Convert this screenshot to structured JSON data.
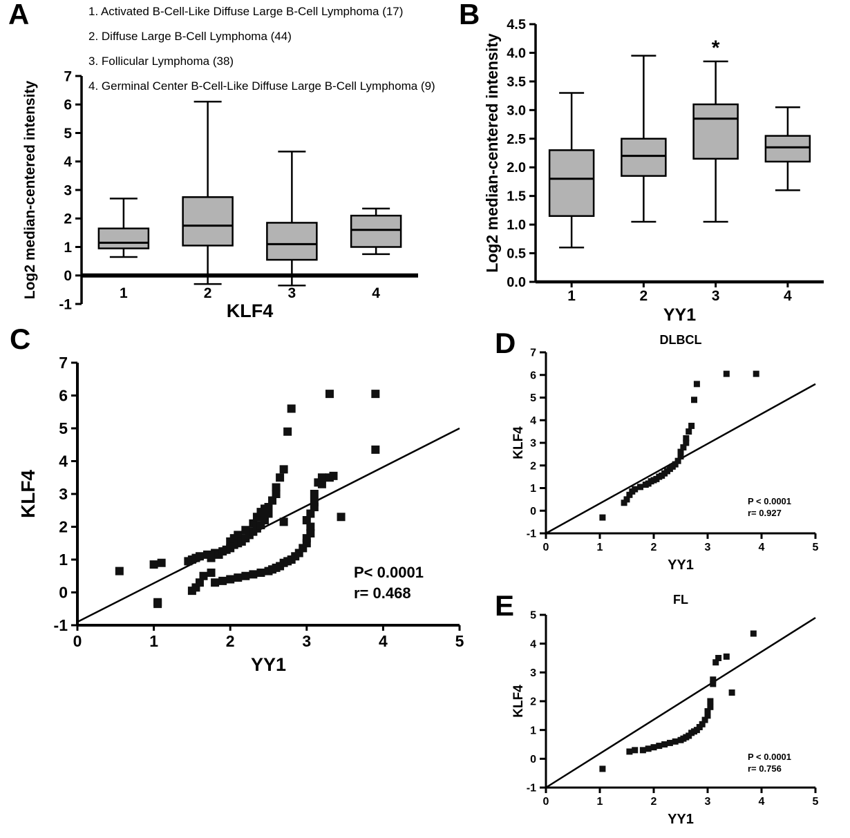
{
  "panels": {
    "a_label": "A",
    "b_label": "B",
    "c_label": "C",
    "d_label": "D",
    "e_label": "E"
  },
  "legend": {
    "items": [
      "1. Activated B-Cell-Like Diffuse Large B-Cell Lymphoma (17)",
      "2. Diffuse Large B-Cell Lymphoma (44)",
      "3. Follicular Lymphoma  (38)",
      "4. Germinal Center B-Cell-Like Diffuse Large B-Cell Lymphoma (9)"
    ]
  },
  "chart_data": [
    {
      "id": "a",
      "type": "box",
      "title": "",
      "xlabel": "KLF4",
      "ylabel": "Log2 median-centered intensity",
      "categories": [
        "1",
        "2",
        "3",
        "4"
      ],
      "ylim": [
        -1,
        7
      ],
      "ytick_vals": [
        -1,
        0,
        1,
        2,
        3,
        4,
        5,
        6,
        7
      ],
      "ytick_labels": [
        "-1",
        "0",
        "1",
        "2",
        "3",
        "4",
        "5",
        "6",
        "7"
      ],
      "xaxis_at": 0,
      "box_fill": "#b3b3b3",
      "boxes": [
        {
          "low": 0.65,
          "q1": 0.95,
          "median": 1.15,
          "q3": 1.65,
          "high": 2.7,
          "mark": ""
        },
        {
          "low": -0.3,
          "q1": 1.05,
          "median": 1.75,
          "q3": 2.75,
          "high": 6.1,
          "mark": ""
        },
        {
          "low": -0.35,
          "q1": 0.55,
          "median": 1.1,
          "q3": 1.85,
          "high": 4.35,
          "mark": ""
        },
        {
          "low": 0.75,
          "q1": 1.0,
          "median": 1.6,
          "q3": 2.1,
          "high": 2.35,
          "mark": ""
        }
      ]
    },
    {
      "id": "b",
      "type": "box",
      "title": "",
      "xlabel": "YY1",
      "ylabel": "Log2 median-centered intensity",
      "categories": [
        "1",
        "2",
        "3",
        "4"
      ],
      "ylim": [
        0,
        4.5
      ],
      "ytick_vals": [
        0,
        0.5,
        1,
        1.5,
        2,
        2.5,
        3,
        3.5,
        4,
        4.5
      ],
      "ytick_labels": [
        "0.0",
        "0.5",
        "1.0",
        "1.5",
        "2.0",
        "2.5",
        "3.0",
        "3.5",
        "4.0",
        "4.5"
      ],
      "xaxis_at": 0,
      "box_fill": "#b3b3b3",
      "boxes": [
        {
          "low": 0.6,
          "q1": 1.15,
          "median": 1.8,
          "q3": 2.3,
          "high": 3.3,
          "mark": ""
        },
        {
          "low": 1.05,
          "q1": 1.85,
          "median": 2.2,
          "q3": 2.5,
          "high": 3.95,
          "mark": ""
        },
        {
          "low": 1.05,
          "q1": 2.15,
          "median": 2.85,
          "q3": 3.1,
          "high": 3.85,
          "mark": "*"
        },
        {
          "low": 1.6,
          "q1": 2.1,
          "median": 2.35,
          "q3": 2.55,
          "high": 3.05,
          "mark": ""
        }
      ]
    },
    {
      "id": "c",
      "type": "scatter",
      "title": "",
      "xlabel": "YY1",
      "ylabel": "KLF4",
      "xlim": [
        0,
        5
      ],
      "ylim": [
        -1,
        7
      ],
      "xtick_vals": [
        0,
        1,
        2,
        3,
        4,
        5
      ],
      "xtick_labels": [
        "0",
        "1",
        "2",
        "3",
        "4",
        "5"
      ],
      "ytick_vals": [
        -1,
        0,
        1,
        2,
        3,
        4,
        5,
        6,
        7
      ],
      "ytick_labels": [
        "-1",
        "0",
        "1",
        "2",
        "3",
        "4",
        "5",
        "6",
        "7"
      ],
      "line": {
        "x1": 0,
        "y1": -0.9,
        "x2": 5,
        "y2": 5.0
      },
      "stats": [
        "P< 0.0001",
        "r= 0.468"
      ],
      "points": [
        [
          0.55,
          0.65
        ],
        [
          1.0,
          0.85
        ],
        [
          1.1,
          0.9
        ],
        [
          1.05,
          -0.3
        ],
        [
          1.05,
          -0.35
        ],
        [
          1.45,
          0.95
        ],
        [
          1.5,
          1.0
        ],
        [
          1.5,
          0.05
        ],
        [
          1.55,
          0.15
        ],
        [
          1.55,
          1.05
        ],
        [
          1.6,
          0.3
        ],
        [
          1.6,
          1.1
        ],
        [
          1.65,
          0.5
        ],
        [
          1.7,
          1.15
        ],
        [
          1.75,
          0.6
        ],
        [
          1.75,
          1.05
        ],
        [
          1.8,
          0.3
        ],
        [
          1.8,
          1.2
        ],
        [
          1.85,
          1.15
        ],
        [
          1.9,
          0.35
        ],
        [
          1.9,
          1.25
        ],
        [
          1.95,
          1.3
        ],
        [
          2.0,
          0.4
        ],
        [
          2.0,
          1.35
        ],
        [
          2.0,
          1.55
        ],
        [
          2.05,
          1.45
        ],
        [
          2.05,
          1.65
        ],
        [
          2.1,
          0.45
        ],
        [
          2.1,
          1.5
        ],
        [
          2.1,
          1.75
        ],
        [
          2.15,
          1.55
        ],
        [
          2.2,
          0.5
        ],
        [
          2.2,
          1.65
        ],
        [
          2.2,
          1.9
        ],
        [
          2.25,
          1.75
        ],
        [
          2.3,
          0.55
        ],
        [
          2.3,
          1.85
        ],
        [
          2.3,
          2.1
        ],
        [
          2.35,
          1.95
        ],
        [
          2.35,
          2.3
        ],
        [
          2.4,
          0.6
        ],
        [
          2.4,
          2.05
        ],
        [
          2.4,
          2.45
        ],
        [
          2.45,
          2.2
        ],
        [
          2.45,
          2.55
        ],
        [
          2.5,
          0.65
        ],
        [
          2.5,
          2.4
        ],
        [
          2.5,
          2.6
        ],
        [
          2.55,
          0.7
        ],
        [
          2.55,
          2.8
        ],
        [
          2.6,
          0.75
        ],
        [
          2.6,
          3.0
        ],
        [
          2.6,
          3.2
        ],
        [
          2.65,
          0.8
        ],
        [
          2.65,
          3.5
        ],
        [
          2.7,
          0.9
        ],
        [
          2.7,
          2.15
        ],
        [
          2.7,
          3.75
        ],
        [
          2.75,
          0.95
        ],
        [
          2.75,
          4.9
        ],
        [
          2.8,
          1.0
        ],
        [
          2.8,
          5.6
        ],
        [
          2.85,
          1.1
        ],
        [
          2.9,
          1.2
        ],
        [
          2.95,
          1.35
        ],
        [
          3.0,
          1.5
        ],
        [
          3.0,
          1.65
        ],
        [
          3.0,
          2.2
        ],
        [
          3.05,
          1.8
        ],
        [
          3.05,
          2.0
        ],
        [
          3.05,
          2.4
        ],
        [
          3.1,
          2.6
        ],
        [
          3.1,
          2.75
        ],
        [
          3.1,
          3.0
        ],
        [
          3.15,
          3.35
        ],
        [
          3.2,
          3.3
        ],
        [
          3.2,
          3.5
        ],
        [
          3.3,
          3.5
        ],
        [
          3.3,
          6.05
        ],
        [
          3.35,
          3.55
        ],
        [
          3.45,
          2.3
        ],
        [
          3.9,
          6.05
        ],
        [
          3.9,
          4.35
        ]
      ]
    },
    {
      "id": "d",
      "type": "scatter",
      "title": "DLBCL",
      "xlabel": "YY1",
      "ylabel": "KLF4",
      "xlim": [
        0,
        5
      ],
      "ylim": [
        -1,
        7
      ],
      "xtick_vals": [
        0,
        1,
        2,
        3,
        4,
        5
      ],
      "xtick_labels": [
        "0",
        "1",
        "2",
        "3",
        "4",
        "5"
      ],
      "ytick_vals": [
        -1,
        0,
        1,
        2,
        3,
        4,
        5,
        6,
        7
      ],
      "ytick_labels": [
        "-1",
        "0",
        "1",
        "2",
        "3",
        "4",
        "5",
        "6",
        "7"
      ],
      "line": {
        "x1": 0,
        "y1": -1.0,
        "x2": 5,
        "y2": 5.6
      },
      "stats": [
        "P < 0.0001",
        "r= 0.927"
      ],
      "points": [
        [
          1.05,
          -0.3
        ],
        [
          1.45,
          0.35
        ],
        [
          1.5,
          0.5
        ],
        [
          1.55,
          0.7
        ],
        [
          1.6,
          0.85
        ],
        [
          1.65,
          0.95
        ],
        [
          1.75,
          1.05
        ],
        [
          1.85,
          1.15
        ],
        [
          1.9,
          1.2
        ],
        [
          1.95,
          1.3
        ],
        [
          2.0,
          1.35
        ],
        [
          2.05,
          1.4
        ],
        [
          2.1,
          1.5
        ],
        [
          2.15,
          1.55
        ],
        [
          2.2,
          1.65
        ],
        [
          2.25,
          1.75
        ],
        [
          2.3,
          1.85
        ],
        [
          2.35,
          1.95
        ],
        [
          2.4,
          2.05
        ],
        [
          2.45,
          2.2
        ],
        [
          2.5,
          2.4
        ],
        [
          2.5,
          2.6
        ],
        [
          2.55,
          2.8
        ],
        [
          2.6,
          3.0
        ],
        [
          2.6,
          3.2
        ],
        [
          2.65,
          3.5
        ],
        [
          2.7,
          3.75
        ],
        [
          2.75,
          4.9
        ],
        [
          2.8,
          5.6
        ],
        [
          3.35,
          6.05
        ],
        [
          3.9,
          6.05
        ]
      ]
    },
    {
      "id": "e",
      "type": "scatter",
      "title": "FL",
      "xlabel": "YY1",
      "ylabel": "KLF4",
      "xlim": [
        0,
        5
      ],
      "ylim": [
        -1,
        5
      ],
      "xtick_vals": [
        0,
        1,
        2,
        3,
        4,
        5
      ],
      "xtick_labels": [
        "0",
        "1",
        "2",
        "3",
        "4",
        "5"
      ],
      "ytick_vals": [
        -1,
        0,
        1,
        2,
        3,
        4,
        5
      ],
      "ytick_labels": [
        "-1",
        "0",
        "1",
        "2",
        "3",
        "4",
        "5"
      ],
      "line": {
        "x1": 0,
        "y1": -1.0,
        "x2": 5,
        "y2": 4.9
      },
      "stats": [
        "P < 0.0001",
        "r= 0.756"
      ],
      "points": [
        [
          1.05,
          -0.35
        ],
        [
          1.55,
          0.25
        ],
        [
          1.65,
          0.3
        ],
        [
          1.8,
          0.3
        ],
        [
          1.9,
          0.35
        ],
        [
          2.0,
          0.4
        ],
        [
          2.1,
          0.45
        ],
        [
          2.2,
          0.5
        ],
        [
          2.3,
          0.55
        ],
        [
          2.4,
          0.6
        ],
        [
          2.5,
          0.65
        ],
        [
          2.55,
          0.7
        ],
        [
          2.6,
          0.75
        ],
        [
          2.65,
          0.8
        ],
        [
          2.7,
          0.9
        ],
        [
          2.75,
          0.95
        ],
        [
          2.8,
          1.0
        ],
        [
          2.85,
          1.1
        ],
        [
          2.9,
          1.2
        ],
        [
          2.95,
          1.35
        ],
        [
          3.0,
          1.5
        ],
        [
          3.0,
          1.65
        ],
        [
          3.05,
          1.8
        ],
        [
          3.05,
          2.0
        ],
        [
          3.1,
          2.6
        ],
        [
          3.1,
          2.75
        ],
        [
          3.15,
          3.35
        ],
        [
          3.2,
          3.5
        ],
        [
          3.35,
          3.55
        ],
        [
          3.45,
          2.3
        ],
        [
          3.85,
          4.35
        ]
      ]
    }
  ]
}
